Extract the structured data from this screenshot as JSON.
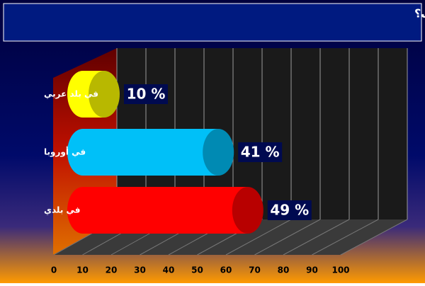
{
  "chart_data": {
    "type": "bar",
    "orientation": "horizontal",
    "title": "أين ستقضي إجازة الصيف؟",
    "categories": [
      "في بلد عربي",
      "في أوروبا",
      "في بلدي"
    ],
    "values": [
      10,
      41,
      49
    ],
    "value_labels": [
      "10 %",
      "41 %",
      "49 %"
    ],
    "colors": [
      "#ffff00",
      "#00c0f8",
      "#ff0000"
    ],
    "xlim": [
      0,
      100
    ],
    "xticks": [
      0,
      10,
      20,
      30,
      40,
      50,
      60,
      70,
      80,
      90,
      100
    ],
    "grid": true
  }
}
